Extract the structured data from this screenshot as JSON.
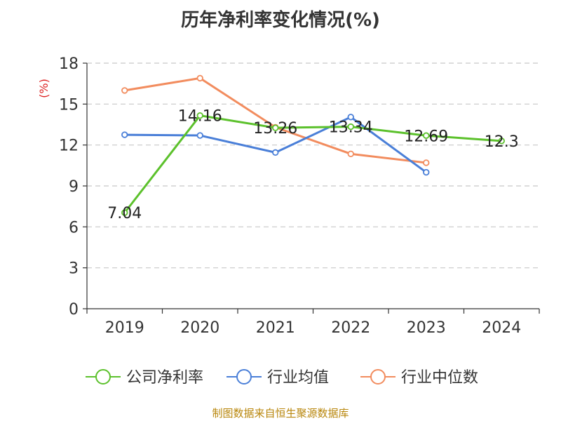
{
  "chart_data": {
    "type": "line",
    "title": "历年净利率变化情况(%)",
    "ylabel": "(%)",
    "xlabel": "",
    "categories": [
      "2019",
      "2020",
      "2021",
      "2022",
      "2023",
      "2024"
    ],
    "ylim": [
      0,
      18
    ],
    "yticks": [
      0,
      3,
      6,
      9,
      12,
      15,
      18
    ],
    "grid": true,
    "legend_position": "bottom",
    "series": [
      {
        "name": "公司净利率",
        "color": "#5cc12c",
        "values": [
          7.04,
          14.16,
          13.26,
          13.34,
          12.69,
          12.3
        ],
        "labels": [
          "7.04",
          "14.16",
          "13.26",
          "13.34",
          "12.69",
          "12.3"
        ]
      },
      {
        "name": "行业均值",
        "color": "#4a7fd8",
        "values": [
          12.75,
          12.7,
          11.45,
          14.05,
          10.0,
          null
        ]
      },
      {
        "name": "行业中位数",
        "color": "#f28c5e",
        "values": [
          16.0,
          16.9,
          13.3,
          11.35,
          10.7,
          null
        ]
      }
    ]
  },
  "footer": {
    "source": "制图数据来自恒生聚源数据库"
  }
}
